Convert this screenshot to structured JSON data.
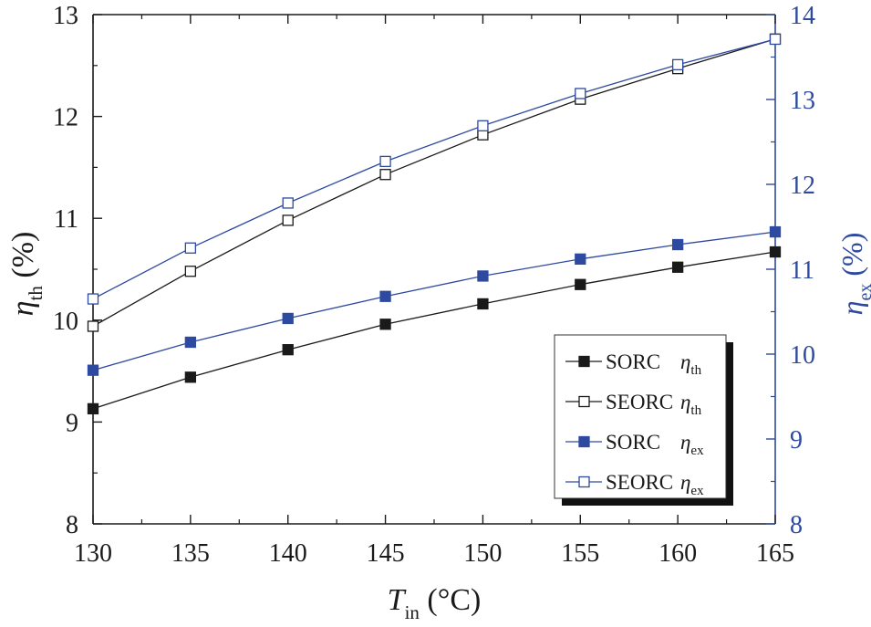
{
  "chart_data": {
    "type": "line",
    "x": [
      130,
      135,
      140,
      145,
      150,
      155,
      160,
      165
    ],
    "xlabel": {
      "symbol": "T",
      "sub": "in",
      "unit": " (°C)"
    },
    "ylabel_left": {
      "symbol": "η",
      "sub": "th",
      "unit": " (%)"
    },
    "ylabel_right": {
      "symbol": "η",
      "sub": "ex",
      "unit": " (%)"
    },
    "xlim": [
      130,
      165
    ],
    "ylim_left": [
      8,
      13
    ],
    "ylim_right": [
      8,
      14
    ],
    "xticks": [
      "130",
      "135",
      "140",
      "145",
      "150",
      "155",
      "160",
      "165"
    ],
    "yticks_left": [
      "8",
      "9",
      "10",
      "11",
      "12",
      "13"
    ],
    "yticks_right": [
      "8",
      "9",
      "10",
      "11",
      "12",
      "13",
      "14"
    ],
    "grid": false,
    "legend_position": "lower-right",
    "colors": {
      "black": "#1a1a1a",
      "blue": "#2e4aa0"
    },
    "series": [
      {
        "name": "SORC",
        "symbol": "η",
        "sub": "th",
        "axis": "left",
        "marker": "filled-square",
        "color": "black",
        "values": [
          9.13,
          9.44,
          9.71,
          9.96,
          10.16,
          10.35,
          10.52,
          10.67
        ]
      },
      {
        "name": "SEORC",
        "symbol": "η",
        "sub": "th",
        "axis": "left",
        "marker": "open-square",
        "color": "black",
        "values": [
          9.94,
          10.48,
          10.98,
          11.43,
          11.82,
          12.17,
          12.47,
          12.76
        ]
      },
      {
        "name": "SORC",
        "symbol": "η",
        "sub": "ex",
        "axis": "right",
        "marker": "filled-square",
        "color": "blue",
        "values": [
          9.81,
          10.14,
          10.42,
          10.68,
          10.92,
          11.12,
          11.29,
          11.44
        ]
      },
      {
        "name": "SEORC",
        "symbol": "η",
        "sub": "ex",
        "axis": "right",
        "marker": "open-square",
        "color": "blue",
        "values": [
          10.65,
          11.25,
          11.78,
          12.27,
          12.69,
          13.07,
          13.41,
          13.71
        ]
      }
    ]
  }
}
